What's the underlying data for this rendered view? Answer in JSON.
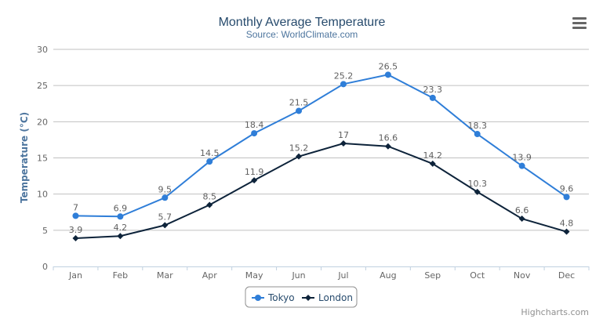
{
  "chart_data": {
    "type": "line",
    "title": "Monthly Average Temperature",
    "subtitle": "Source: WorldClimate.com",
    "xlabel": "",
    "ylabel": "Temperature (°C)",
    "categories": [
      "Jan",
      "Feb",
      "Mar",
      "Apr",
      "May",
      "Jun",
      "Jul",
      "Aug",
      "Sep",
      "Oct",
      "Nov",
      "Dec"
    ],
    "ylim": [
      0,
      30
    ],
    "yticks": [
      0,
      5,
      10,
      15,
      20,
      25,
      30
    ],
    "grid": true,
    "legend_position": "bottom",
    "data_labels": true,
    "series": [
      {
        "name": "Tokyo",
        "color": "#2f7ed8",
        "marker": "circle",
        "values": [
          7,
          6.9,
          9.5,
          14.5,
          18.4,
          21.5,
          25.2,
          26.5,
          23.3,
          18.3,
          13.9,
          9.6
        ]
      },
      {
        "name": "London",
        "color": "#0d233a",
        "marker": "diamond",
        "values": [
          3.9,
          4.2,
          5.7,
          8.5,
          11.9,
          15.2,
          17,
          16.6,
          14.2,
          10.3,
          6.6,
          4.8
        ]
      }
    ]
  },
  "credits": "Highcharts.com",
  "menu_icon": "hamburger-menu-icon",
  "colors": {
    "title": "#274b6d",
    "subtitle": "#4d759e",
    "grid": "#c0c0c0",
    "axis": "#c0d0e0",
    "tick_label": "#666666"
  }
}
